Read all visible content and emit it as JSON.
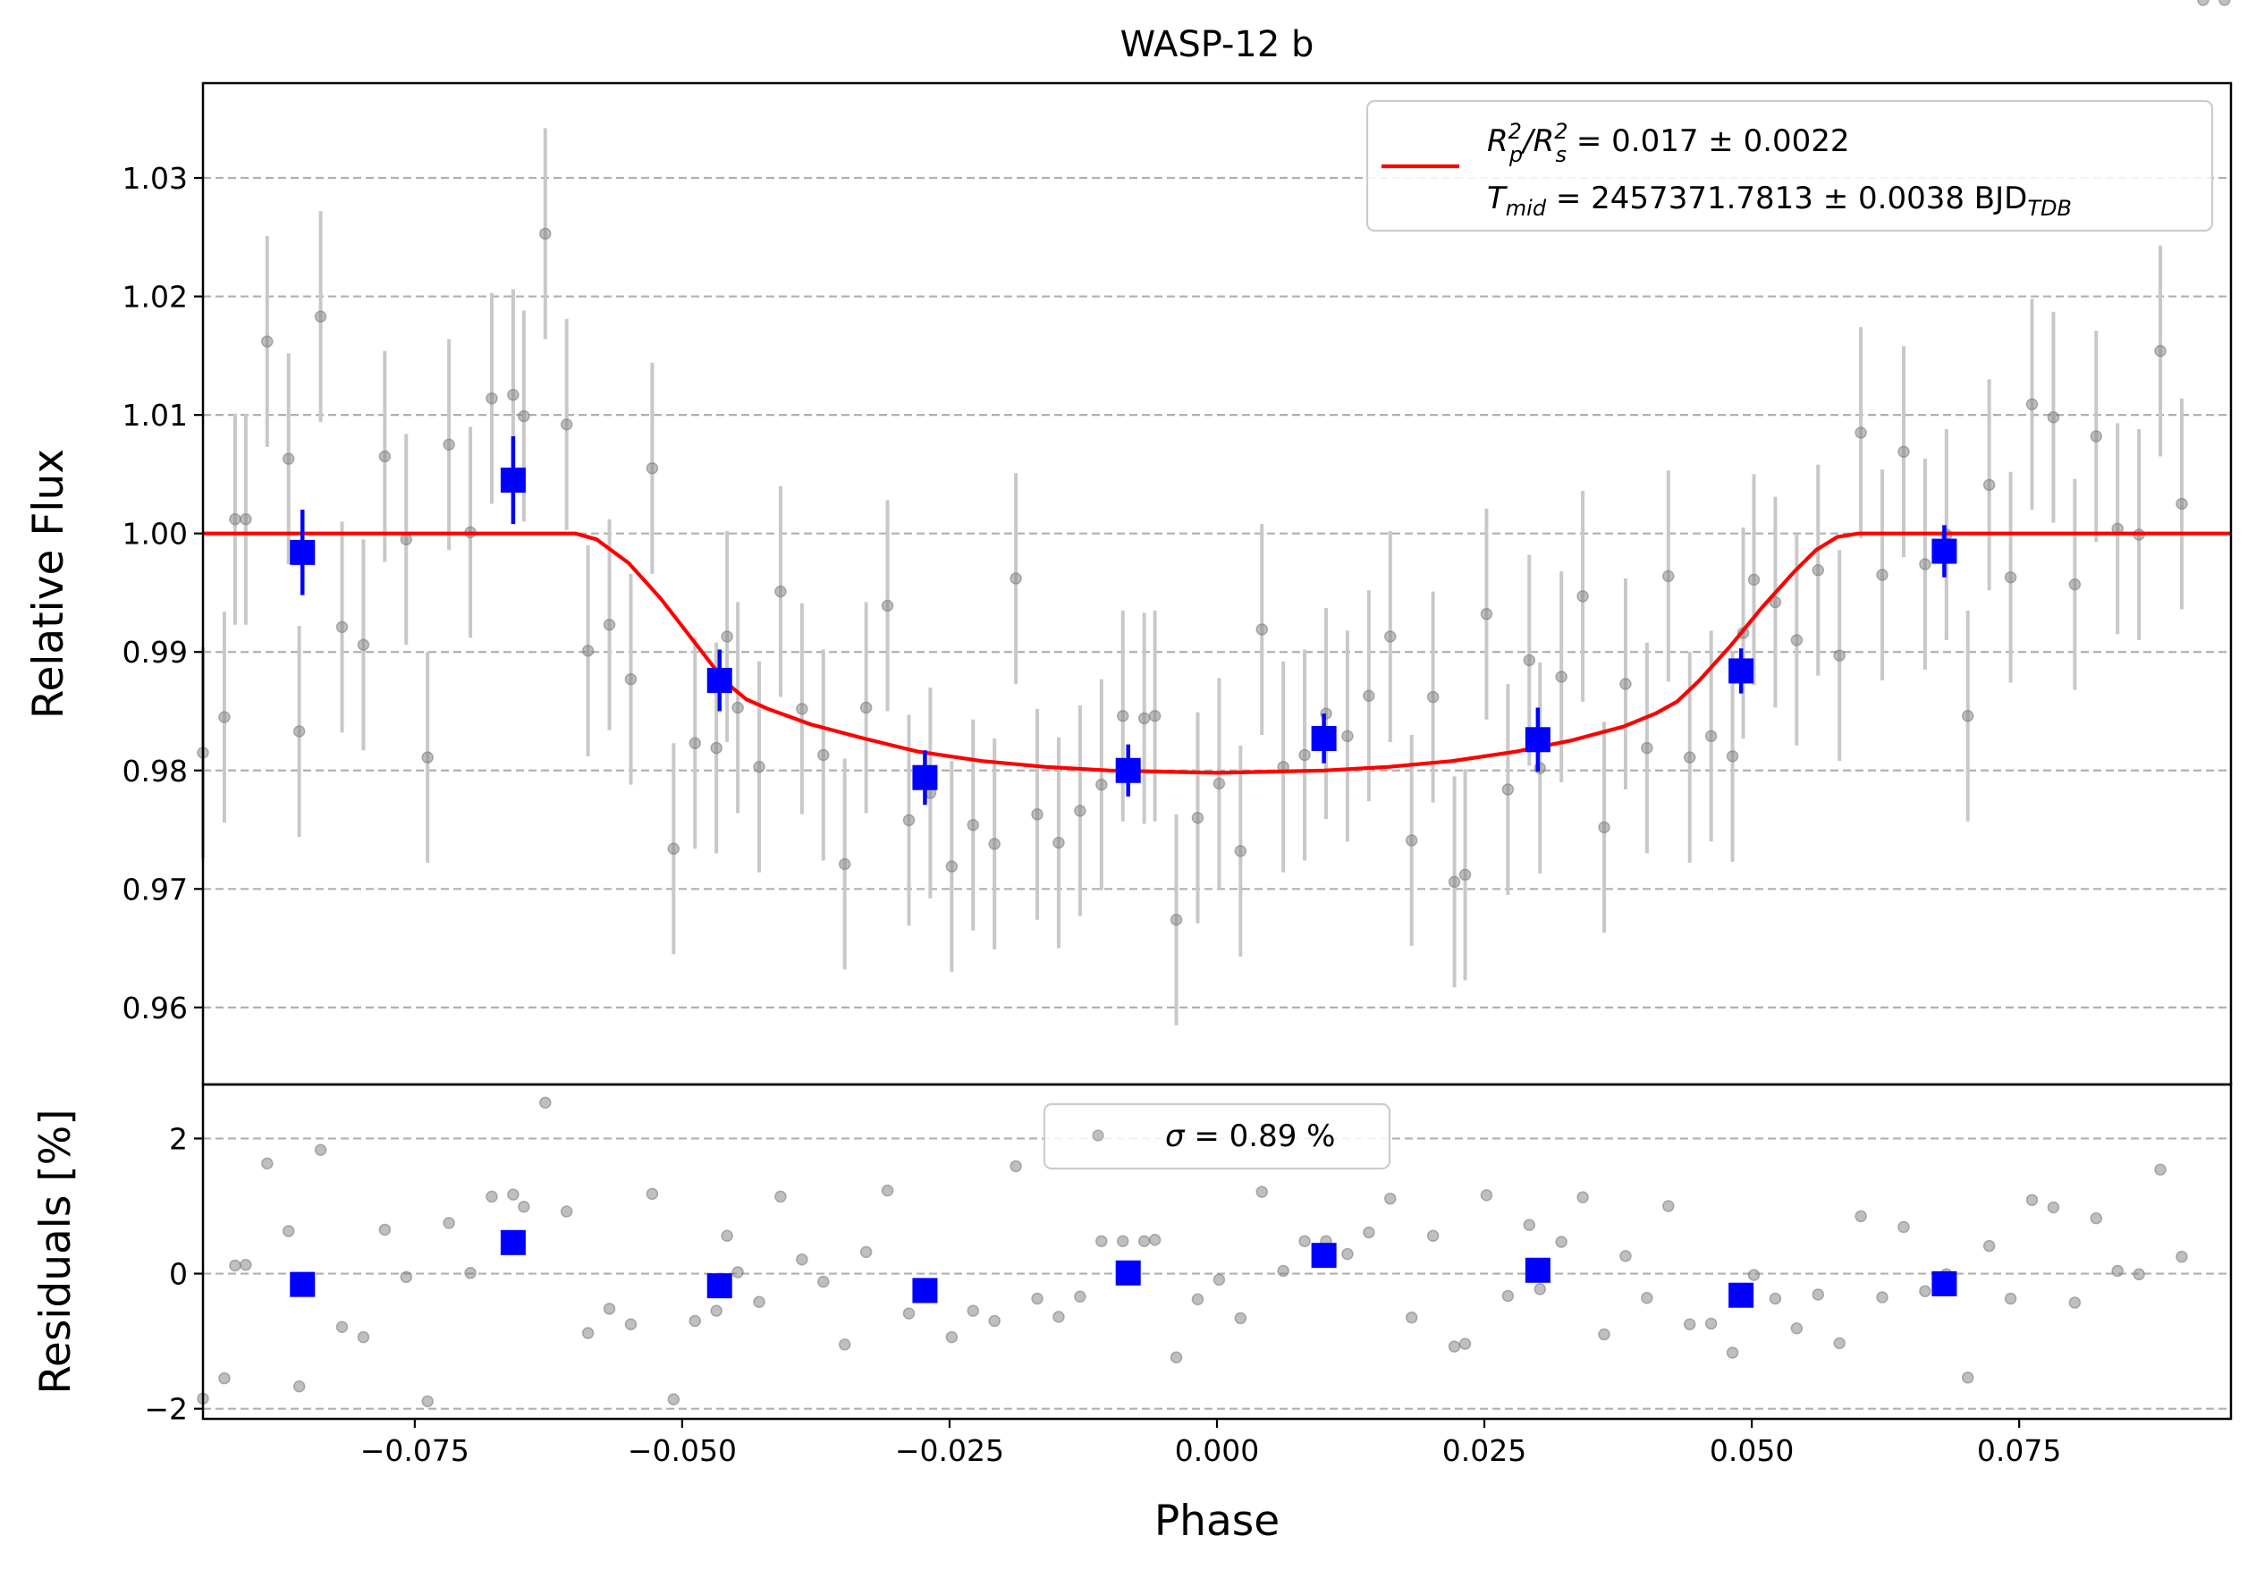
{
  "chart_data": {
    "type": "scatter",
    "title": "WASP-12 b",
    "xlabel": "Phase",
    "xlim": [
      -0.0948,
      0.0948
    ],
    "x_ticks": [
      -0.075,
      -0.05,
      -0.025,
      0.0,
      0.025,
      0.05,
      0.075
    ],
    "x_tick_labels": [
      "−0.075",
      "−0.050",
      "−0.025",
      "0.000",
      "0.025",
      "0.050",
      "0.075"
    ],
    "grid": "horizontal dashed",
    "colors": {
      "raw": "#808080",
      "binned": "#0000ff",
      "model": "#ff0000",
      "errorbar_raw": "#c8c8c8"
    },
    "panels": {
      "flux": {
        "ylabel": "Relative Flux",
        "ylim": [
          0.9535,
          1.038
        ],
        "y_ticks": [
          0.96,
          0.97,
          0.98,
          0.99,
          1.0,
          1.01,
          1.02,
          1.03
        ],
        "y_tick_labels": [
          "0.96",
          "0.97",
          "0.98",
          "0.99",
          "1.00",
          "1.01",
          "1.02",
          "1.03"
        ],
        "legend": {
          "position": "top-right",
          "line1_main": "R",
          "line1_sub1": "p",
          "line1_sup1": "2",
          "line1_slash": "/R",
          "line1_sub2": "s",
          "line1_sup2": "2",
          "line1_rest": " = 0.017 ± 0.0022",
          "line2_main": "T",
          "line2_sub": "mid",
          "line2_rest": " = 2457371.7813 ± 0.0038 BJD",
          "line2_sub2": "TDB"
        },
        "raw_x": [
          -0.0948,
          -0.0928,
          -0.0918,
          -0.0908,
          -0.0888,
          -0.0868,
          -0.0858,
          -0.0838,
          -0.0818,
          -0.0798,
          -0.0778,
          -0.0758,
          -0.0738,
          -0.0718,
          -0.0698,
          -0.0678,
          -0.0658,
          -0.0648,
          -0.0628,
          -0.0608,
          -0.0588,
          -0.0568,
          -0.0548,
          -0.0528,
          -0.0508,
          -0.0488,
          -0.0468,
          -0.0458,
          -0.0448,
          -0.0428,
          -0.0408,
          -0.0388,
          -0.0368,
          -0.0348,
          -0.0328,
          -0.0308,
          -0.0288,
          -0.0268,
          -0.0248,
          -0.0228,
          -0.0208,
          -0.0188,
          -0.0168,
          -0.0148,
          -0.0128,
          -0.0108,
          -0.0088,
          -0.0068,
          -0.0058,
          -0.0038,
          -0.0018,
          0.0002,
          0.0022,
          0.0042,
          0.0062,
          0.0082,
          0.0102,
          0.0122,
          0.0142,
          0.0162,
          0.0182,
          0.0202,
          0.0222,
          0.0232,
          0.0252,
          0.0272,
          0.0292,
          0.0302,
          0.0322,
          0.0342,
          0.0362,
          0.0382,
          0.0402,
          0.0422,
          0.0442,
          0.0462,
          0.0482,
          0.0492,
          0.0502,
          0.0522,
          0.0542,
          0.0562,
          0.0582,
          0.0602,
          0.0622,
          0.0642,
          0.0662,
          0.0682,
          0.0702,
          0.0722,
          0.0742,
          0.0762,
          0.0782,
          0.0802,
          0.0822,
          0.0842,
          0.0862,
          0.0882,
          0.0902,
          0.0922,
          0.0942
        ],
        "raw_y": [
          0.9815,
          0.9845,
          1.0012,
          1.0012,
          1.0162,
          1.0063,
          0.9833,
          1.0183,
          0.9921,
          0.9906,
          1.0065,
          0.9995,
          0.9811,
          1.0075,
          1.0001,
          1.0114,
          1.0117,
          1.0099,
          1.0253,
          1.0092,
          0.9901,
          0.9923,
          0.9877,
          1.0055,
          0.9734,
          0.9823,
          0.9819,
          0.9913,
          0.9853,
          0.9803,
          0.9951,
          0.9852,
          0.9813,
          0.9721,
          0.9853,
          0.9939,
          0.9758,
          0.9781,
          0.9719,
          0.9754,
          0.9738,
          0.9962,
          0.9763,
          0.9739,
          0.9766,
          0.9788,
          0.9846,
          0.9844,
          0.9846,
          0.9674,
          0.976,
          0.9789,
          0.9732,
          0.9919,
          0.9803,
          0.9813,
          0.9848,
          0.9829,
          0.9863,
          0.9913,
          0.9741,
          0.9862,
          0.9706,
          0.9712,
          0.9932,
          0.9784,
          0.9893,
          0.9802,
          0.9879,
          0.9947,
          0.9752,
          0.9873,
          0.9819,
          0.9964,
          0.9811,
          0.9829,
          0.9812,
          0.9916,
          0.9961,
          0.9942,
          0.991,
          0.9969,
          0.9897,
          1.0085,
          0.9965,
          1.0069,
          0.9974,
          0.9999,
          0.9846,
          1.0041,
          0.9963,
          1.0109,
          1.0098,
          0.9957,
          1.0082,
          1.0004,
          0.9999,
          1.0154,
          1.0025
        ],
        "raw_yerr": 0.0089,
        "binned_x": [
          -0.0855,
          -0.0658,
          -0.0465,
          -0.0273,
          -0.0083,
          0.01,
          0.03,
          0.049,
          0.068
        ],
        "binned_y": [
          0.9984,
          1.0045,
          0.9876,
          0.9794,
          0.98,
          0.9827,
          0.9826,
          0.9884,
          0.9985
        ],
        "binned_yerr": [
          0.0036,
          0.0037,
          0.0026,
          0.0023,
          0.0022,
          0.0021,
          0.0027,
          0.0019,
          0.0022
        ],
        "model": {
          "x": [
            -0.0948,
            -0.06,
            -0.058,
            -0.055,
            -0.052,
            -0.049,
            -0.046,
            -0.044,
            -0.042,
            -0.038,
            -0.033,
            -0.028,
            -0.022,
            -0.016,
            -0.01,
            -0.005,
            0.0,
            0.005,
            0.01,
            0.016,
            0.022,
            0.028,
            0.033,
            0.038,
            0.041,
            0.043,
            0.045,
            0.048,
            0.051,
            0.054,
            0.056,
            0.058,
            0.06,
            0.0948
          ],
          "y": [
            1.0,
            1.0,
            0.9995,
            0.9975,
            0.9945,
            0.991,
            0.9875,
            0.986,
            0.9852,
            0.9839,
            0.9827,
            0.9816,
            0.9808,
            0.9803,
            0.98,
            0.9799,
            0.9798,
            0.9799,
            0.98,
            0.9803,
            0.9808,
            0.9816,
            0.9825,
            0.9837,
            0.9848,
            0.9858,
            0.9875,
            0.9905,
            0.9938,
            0.9968,
            0.9986,
            0.9997,
            1.0,
            1.0
          ]
        }
      },
      "residuals": {
        "ylabel": "Residuals [%]",
        "ylim": [
          -2.15,
          2.8
        ],
        "y_ticks": [
          -2,
          0,
          2
        ],
        "y_tick_labels": [
          "−2",
          "0",
          "2"
        ],
        "legend": {
          "position": "upper-center",
          "sigma": "σ",
          "text": " = 0.89 %"
        },
        "raw_y": [
          -1.85,
          -1.55,
          0.12,
          0.13,
          1.63,
          0.63,
          -1.67,
          1.83,
          -0.79,
          -0.94,
          0.65,
          -0.05,
          -1.89,
          0.75,
          0.01,
          1.14,
          1.17,
          0.99,
          2.53,
          0.92,
          -0.88,
          -0.52,
          -0.75,
          1.18,
          -1.86,
          -0.7,
          -0.55,
          0.56,
          0.02,
          -0.42,
          1.14,
          0.21,
          -0.12,
          -1.05,
          0.32,
          1.23,
          -0.59,
          -0.29,
          -0.94,
          -0.55,
          -0.7,
          1.59,
          -0.37,
          -0.64,
          -0.34,
          0.48,
          0.48,
          0.48,
          0.5,
          -1.24,
          -0.38,
          -0.09,
          -0.66,
          1.21,
          0.04,
          0.48,
          0.48,
          0.29,
          0.61,
          1.11,
          -0.65,
          0.56,
          -1.08,
          -1.04,
          1.16,
          -0.33,
          0.72,
          -0.23,
          0.47,
          1.13,
          -0.9,
          0.26,
          -0.36,
          1.0,
          -0.75,
          -0.74,
          -1.17,
          -0.26,
          -0.02,
          -0.37,
          -0.81,
          -0.31,
          -1.03,
          0.85,
          -0.35,
          0.69,
          -0.26,
          -0.01,
          -1.54,
          0.41,
          -0.37,
          1.09,
          0.98,
          -0.43,
          0.82,
          0.04,
          -0.01,
          1.54,
          0.25
        ],
        "binned_y": [
          -0.16,
          0.46,
          -0.18,
          -0.25,
          0.01,
          0.27,
          0.05,
          -0.32,
          -0.15
        ]
      }
    }
  }
}
